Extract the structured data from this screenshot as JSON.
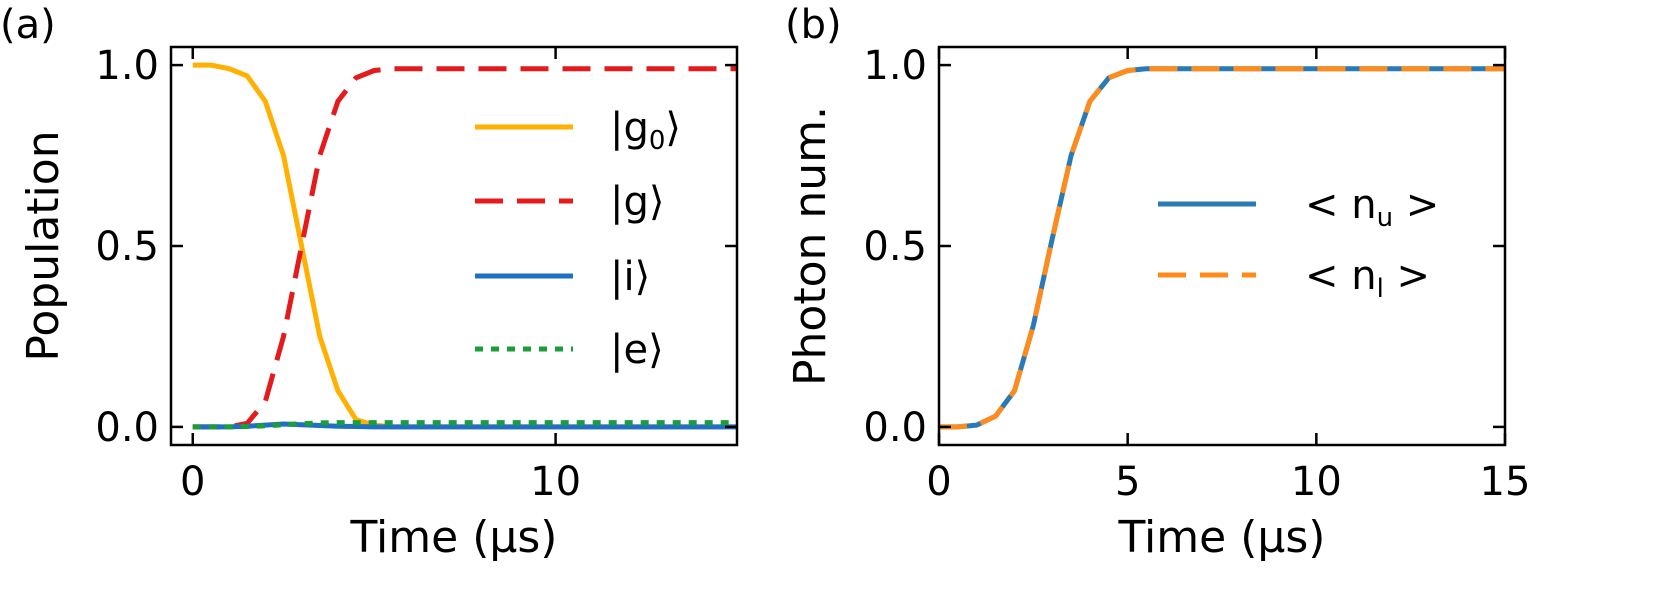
{
  "chart_data": [
    {
      "panel_label": "(a)",
      "type": "line",
      "xlabel": "Time (μs)",
      "ylabel": "Population",
      "xlim": [
        -0.6,
        15
      ],
      "ylim": [
        -0.05,
        1.05
      ],
      "xticks": [
        0,
        10
      ],
      "xtick_labels": [
        "0",
        "10"
      ],
      "yticks": [
        0.0,
        0.5,
        1.0
      ],
      "ytick_labels": [
        "0.0",
        "0.5",
        "1.0"
      ],
      "legend_position": "right",
      "x": [
        0,
        0.5,
        1,
        1.5,
        2,
        2.5,
        3,
        3.5,
        4,
        4.5,
        5,
        5.5,
        6,
        7,
        8,
        9,
        10,
        11,
        12,
        13,
        14,
        15
      ],
      "series": [
        {
          "name": "g0",
          "label_main": "|g",
          "label_sub": "0",
          "label_tail": "⟩",
          "color": "#ffb000",
          "style": "solid",
          "values": [
            1.0,
            1.0,
            0.99,
            0.97,
            0.9,
            0.75,
            0.5,
            0.25,
            0.1,
            0.02,
            0.005,
            0.0,
            0.0,
            0.0,
            0.0,
            0.0,
            0.0,
            0.0,
            0.0,
            0.0,
            0.0,
            0.0
          ]
        },
        {
          "name": "g",
          "label_main": "|g⟩",
          "label_sub": "",
          "label_tail": "",
          "color": "#e41a1c",
          "style": "dashed",
          "values": [
            0.0,
            0.0,
            0.0,
            0.01,
            0.07,
            0.25,
            0.5,
            0.75,
            0.9,
            0.965,
            0.985,
            0.99,
            0.99,
            0.99,
            0.99,
            0.99,
            0.99,
            0.99,
            0.99,
            0.99,
            0.99,
            0.99
          ]
        },
        {
          "name": "i",
          "label_main": "|i⟩",
          "label_sub": "",
          "label_tail": "",
          "color": "#1f6fc5",
          "style": "solid",
          "values": [
            0.0,
            0.0,
            0.0,
            0.002,
            0.005,
            0.008,
            0.006,
            0.004,
            0.002,
            0.001,
            0.0,
            0.0,
            0.0,
            0.0,
            0.0,
            0.0,
            0.0,
            0.0,
            0.0,
            0.0,
            0.0,
            0.0
          ]
        },
        {
          "name": "e",
          "label_main": "|e⟩",
          "label_sub": "",
          "label_tail": "",
          "color": "#1a9e3a",
          "style": "dotted",
          "values": [
            0.0,
            0.0,
            0.0,
            0.001,
            0.003,
            0.006,
            0.009,
            0.011,
            0.012,
            0.012,
            0.012,
            0.012,
            0.012,
            0.012,
            0.012,
            0.012,
            0.012,
            0.012,
            0.012,
            0.012,
            0.012,
            0.012
          ]
        }
      ]
    },
    {
      "panel_label": "(b)",
      "type": "line",
      "xlabel": "Time (μs)",
      "ylabel": "Photon num.",
      "xlim": [
        0,
        15
      ],
      "ylim": [
        -0.05,
        1.05
      ],
      "xticks": [
        0,
        5,
        10,
        15
      ],
      "xtick_labels": [
        "0",
        "5",
        "10",
        "15"
      ],
      "yticks": [
        0.0,
        0.5,
        1.0
      ],
      "ytick_labels": [
        "0.0",
        "0.5",
        "1.0"
      ],
      "legend_position": "right",
      "x": [
        0,
        0.5,
        1,
        1.5,
        2,
        2.5,
        3,
        3.5,
        4,
        4.5,
        5,
        5.5,
        6,
        7,
        8,
        9,
        10,
        11,
        12,
        13,
        14,
        15
      ],
      "series": [
        {
          "name": "nu",
          "label_main": "< n",
          "label_sub": "u",
          "label_tail": " >",
          "color": "#2a7ab5",
          "style": "solid",
          "values": [
            0.0,
            0.0,
            0.005,
            0.03,
            0.1,
            0.28,
            0.52,
            0.75,
            0.9,
            0.965,
            0.985,
            0.99,
            0.99,
            0.99,
            0.99,
            0.99,
            0.99,
            0.99,
            0.99,
            0.99,
            0.99,
            0.99
          ]
        },
        {
          "name": "nl",
          "label_main": "< n",
          "label_sub": "l",
          "label_tail": " >",
          "color": "#ff8c1a",
          "style": "dashed",
          "values": [
            0.0,
            0.0,
            0.005,
            0.03,
            0.1,
            0.28,
            0.52,
            0.75,
            0.9,
            0.965,
            0.985,
            0.99,
            0.99,
            0.99,
            0.99,
            0.99,
            0.99,
            0.99,
            0.99,
            0.99,
            0.99,
            0.99
          ]
        }
      ]
    }
  ]
}
